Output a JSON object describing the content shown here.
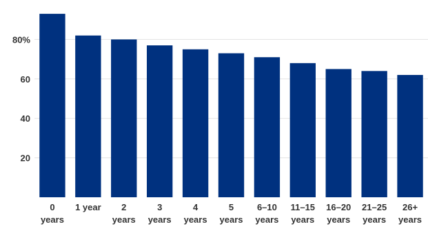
{
  "chart_data": {
    "type": "bar",
    "categories": [
      [
        "0",
        "years"
      ],
      [
        "1 year"
      ],
      [
        "2",
        "years"
      ],
      [
        "3",
        "years"
      ],
      [
        "4",
        "years"
      ],
      [
        "5",
        "years"
      ],
      [
        "6–10",
        "years"
      ],
      [
        "11–15",
        "years"
      ],
      [
        "16–20",
        "years"
      ],
      [
        "21–25",
        "years"
      ],
      [
        "26+",
        "years"
      ]
    ],
    "values": [
      93,
      82,
      80,
      77,
      75,
      73,
      71,
      68,
      65,
      64,
      62
    ],
    "yticks": [
      {
        "value": 20,
        "label": "20"
      },
      {
        "value": 40,
        "label": "40"
      },
      {
        "value": 60,
        "label": "60"
      },
      {
        "value": 80,
        "label": "80%"
      }
    ],
    "ylim": [
      0,
      100
    ],
    "grid": true,
    "colors": {
      "bar": "#00317f",
      "grid": "#e3e3e3",
      "text": "#333333"
    }
  }
}
